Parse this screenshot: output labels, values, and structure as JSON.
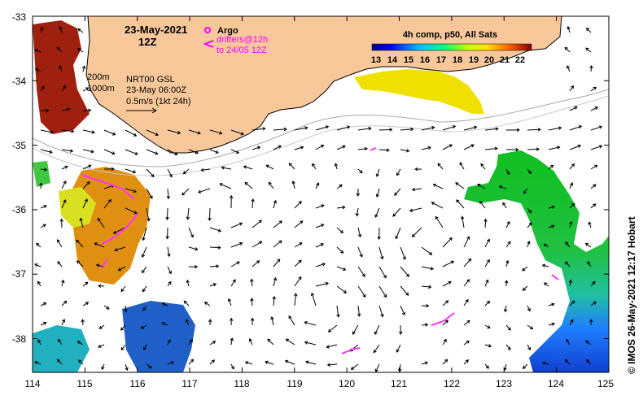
{
  "map": {
    "date": "23-May-2021",
    "time": "12Z",
    "argo_label": "Argo",
    "drifters_line1": "drifters@12h",
    "drifters_line2": "to 24/05 12Z",
    "depth_200": "200m",
    "depth_1000": "1000m",
    "product": "NRT00 GSL",
    "product_time": "23-May 06:00Z",
    "scale_label": "0.5m/s (1kt 24h)",
    "sst_title": "4h comp, p50, All Sats",
    "colorbar_ticks": [
      "13",
      "14",
      "15",
      "16",
      "17",
      "18",
      "19",
      "20",
      "21",
      "22"
    ],
    "x_ticks": [
      "114",
      "115",
      "116",
      "117",
      "118",
      "119",
      "120",
      "121",
      "122",
      "123",
      "124",
      "125"
    ],
    "y_ticks": [
      "-33",
      "-34",
      "-35",
      "-36",
      "-37",
      "-38"
    ],
    "credit": "© IMOS 26-May-2021 12:17 Hobart",
    "colors": {
      "land": "#f8c89a",
      "drifter": "#ff33ff",
      "argo": "#ff00ff"
    }
  }
}
